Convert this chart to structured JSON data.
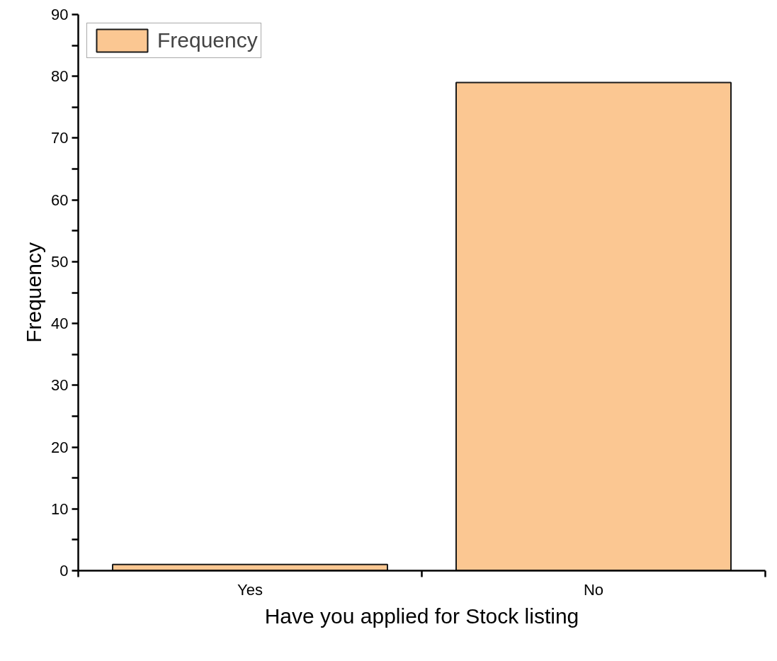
{
  "chart_data": {
    "type": "bar",
    "xlabel": "Have you applied for Stock listing",
    "ylabel": "Frequency",
    "categories": [
      "Yes",
      "No"
    ],
    "series": [
      {
        "name": "Frequency",
        "color": "#fbc792",
        "values": [
          1,
          79
        ]
      }
    ],
    "ylim": [
      0,
      90
    ],
    "yticks": [
      0,
      {
        "value": 5,
        "label": null
      },
      10,
      {
        "value": 15,
        "label": null
      },
      20,
      {
        "value": 25,
        "label": null
      },
      30,
      {
        "value": 35,
        "label": null
      },
      40,
      {
        "value": 45,
        "label": null
      },
      50,
      {
        "value": 55,
        "label": null
      },
      60,
      {
        "value": 65,
        "label": null
      },
      70,
      {
        "value": 75,
        "label": null
      },
      80,
      {
        "value": 85,
        "label": null
      },
      90
    ],
    "grid": false,
    "legend": "top left"
  }
}
